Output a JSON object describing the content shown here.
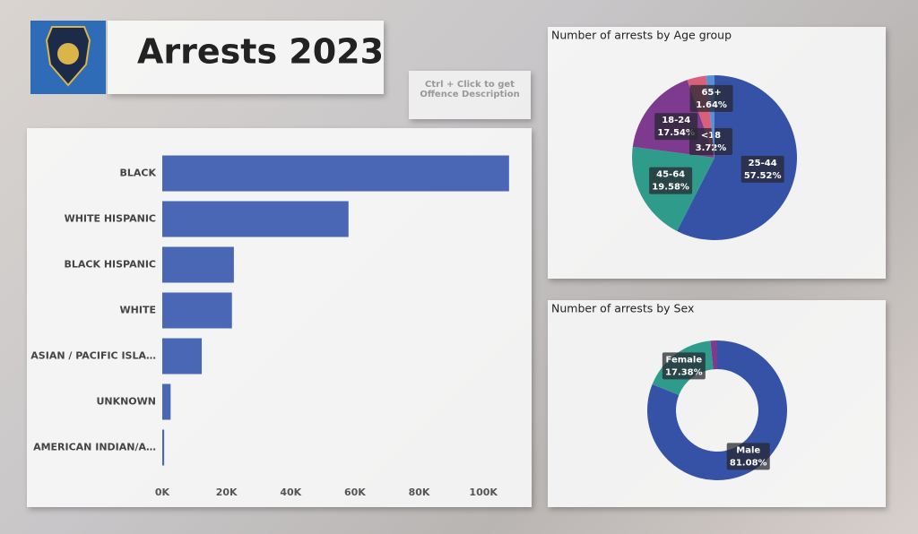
{
  "header": {
    "title": "Arrests 2023"
  },
  "button": {
    "text": "Ctrl + Click to get Offence Description"
  },
  "chart_data": [
    {
      "type": "bar",
      "horizontal": true,
      "color": "#4a67b5",
      "categories": [
        "BLACK",
        "WHITE HISPANIC",
        "BLACK HISPANIC",
        "WHITE",
        "ASIAN / PACIFIC ISLA…",
        "UNKNOWN",
        "AMERICAN INDIAN/A…"
      ],
      "values": [
        108000,
        58000,
        22300,
        21700,
        12300,
        2600,
        600
      ],
      "xlim": [
        0,
        110000
      ],
      "xticks": [
        {
          "value": 0,
          "label": "0K"
        },
        {
          "value": 20000,
          "label": "20K"
        },
        {
          "value": 40000,
          "label": "40K"
        },
        {
          "value": 60000,
          "label": "60K"
        },
        {
          "value": 80000,
          "label": "80K"
        },
        {
          "value": 100000,
          "label": "100K"
        }
      ]
    },
    {
      "type": "pie",
      "title": "Number of arrests by Age group",
      "categories": [
        "25-44",
        "45-64",
        "18-24",
        "<18",
        "65+"
      ],
      "values": [
        57.52,
        19.58,
        17.54,
        3.72,
        1.64
      ],
      "value_labels": [
        "57.52%",
        "19.58%",
        "17.54%",
        "3.72%",
        "1.64%"
      ],
      "colors": [
        "#3552a6",
        "#2f9c8b",
        "#7d3a8e",
        "#d9607b",
        "#5a8fd6"
      ]
    },
    {
      "type": "donut",
      "title": "Number of arrests by Sex",
      "categories": [
        "Male",
        "Female",
        null
      ],
      "values": [
        81.08,
        17.38,
        1.54
      ],
      "value_labels": [
        "81.08%",
        "17.38%",
        null
      ],
      "colors": [
        "#3552a6",
        "#2f9c8b",
        "#7d3a8e"
      ]
    }
  ]
}
